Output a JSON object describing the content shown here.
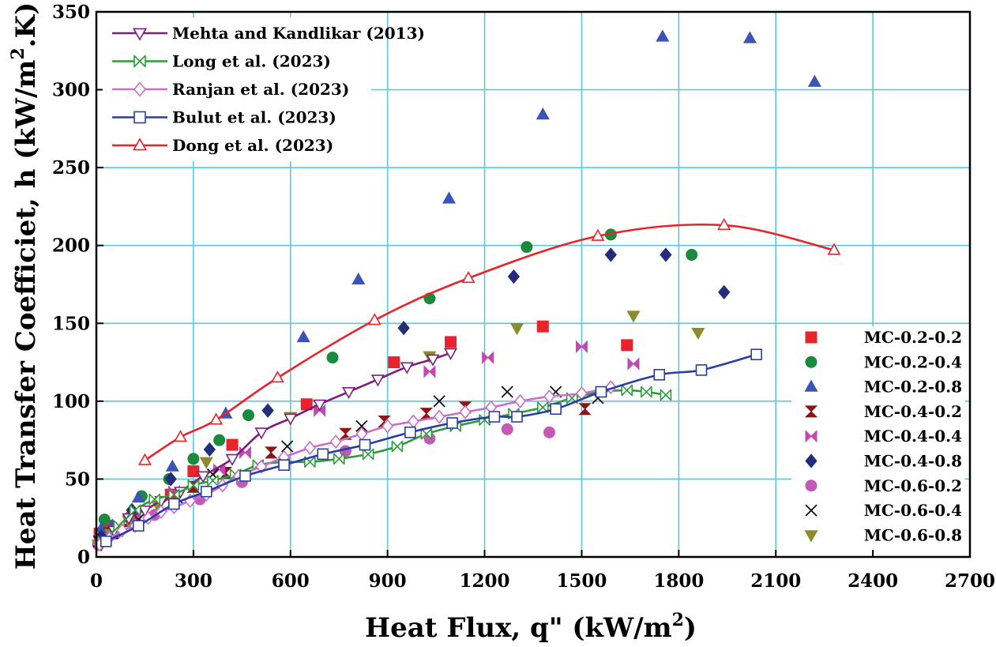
{
  "chart_data": {
    "type": "scatter",
    "xlabel": "Heat Flux, q\" (kW/m²)",
    "xlabel_main": "Heat Flux, q\" (kW/m",
    "xlabel_sup": "2",
    "xlabel_close": ")",
    "ylabel": "Heat Transfer Coefficiet, h (kW/m².K)",
    "ylabel_main": "Heat Transfer Coefficiet, h (kW/m",
    "ylabel_sup": "2",
    "ylabel_close": ".K)",
    "xlim": [
      0,
      2700
    ],
    "ylim": [
      0,
      350
    ],
    "xticks": [
      0,
      300,
      600,
      900,
      1200,
      1500,
      1800,
      2100,
      2400,
      2700
    ],
    "yticks": [
      0,
      50,
      100,
      150,
      200,
      250,
      300,
      350
    ],
    "grid": true,
    "grid_color": "#5bc8d8",
    "correlations": [
      {
        "name": "Mehta and Kandlikar (2013)",
        "color": "#7b1f7e",
        "marker": "triangle-down-open",
        "x": [
          15,
          55,
          100,
          150,
          200,
          260,
          330,
          420,
          510,
          600,
          690,
          780,
          870,
          960,
          1040,
          1095
        ],
        "y": [
          8,
          17,
          25,
          30,
          36,
          42,
          52,
          63,
          80,
          89,
          98,
          106,
          114,
          122,
          127,
          131
        ]
      },
      {
        "name": "Long et al. (2023)",
        "color": "#2e9b3c",
        "marker": "bowtie-open",
        "x": [
          20,
          70,
          120,
          180,
          240,
          300,
          360,
          430,
          500,
          580,
          660,
          750,
          840,
          930,
          1020,
          1110,
          1200,
          1290,
          1380,
          1470,
          1560,
          1640,
          1700,
          1760
        ],
        "y": [
          10,
          20,
          30,
          37,
          40,
          46,
          49,
          53,
          59,
          61,
          61,
          63,
          66,
          71,
          79,
          84,
          88,
          92,
          96,
          102,
          106,
          107,
          106,
          104
        ]
      },
      {
        "name": "Ranjan et al. (2023)",
        "color": "#c86fc8",
        "marker": "diamond-open",
        "x": [
          10,
          40,
          80,
          120,
          160,
          200,
          240,
          290,
          340,
          390,
          440,
          510,
          580,
          660,
          740,
          820,
          900,
          980,
          1060,
          1140,
          1220,
          1310,
          1400,
          1500,
          1590
        ],
        "y": [
          8,
          12,
          17,
          20,
          25,
          29,
          32,
          36,
          40,
          46,
          52,
          58,
          64,
          70,
          74,
          79,
          84,
          87,
          90,
          93,
          96,
          100,
          103,
          105,
          109
        ]
      },
      {
        "name": "Bulut et al. (2023)",
        "color": "#2a3fa0",
        "marker": "square-open",
        "x": [
          30,
          130,
          240,
          340,
          460,
          580,
          700,
          830,
          970,
          1100,
          1230,
          1300,
          1420,
          1560,
          1740,
          1870,
          2040
        ],
        "y": [
          10,
          20,
          34,
          42,
          52,
          59,
          66,
          72,
          80,
          86,
          90,
          90,
          95,
          106,
          117,
          120,
          130
        ]
      },
      {
        "name": "Dong et al. (2023)",
        "color": "#e8232b",
        "marker": "triangle-up-open",
        "x": [
          150,
          260,
          370,
          560,
          860,
          1150,
          1550,
          1940,
          2280
        ],
        "y": [
          62,
          77,
          88,
          115,
          152,
          179,
          206,
          213,
          197
        ]
      }
    ],
    "experimental": [
      {
        "name": "MC-0.2-0.2",
        "color": "#e8232b",
        "marker": "square",
        "x": [
          10,
          30,
          110,
          230,
          300,
          420,
          650,
          920,
          1095,
          1380,
          1640
        ],
        "y": [
          15,
          20,
          25,
          40,
          55,
          72,
          98,
          125,
          138,
          148,
          136
        ]
      },
      {
        "name": "MC-0.2-0.4",
        "color": "#1a8a3c",
        "marker": "circle",
        "x": [
          25,
          140,
          225,
          300,
          380,
          470,
          730,
          1030,
          1330,
          1590,
          1840
        ],
        "y": [
          24,
          39,
          50,
          63,
          75,
          91,
          128,
          166,
          199,
          207,
          194
        ]
      },
      {
        "name": "MC-0.2-0.8",
        "color": "#3a55b5",
        "marker": "triangle-up",
        "x": [
          15,
          50,
          130,
          235,
          400,
          640,
          810,
          1090,
          1380,
          1750,
          2020,
          2220
        ],
        "y": [
          18,
          20,
          38,
          58,
          92,
          141,
          178,
          230,
          284,
          334,
          333,
          305
        ]
      },
      {
        "name": "MC-0.4-0.2",
        "color": "#8a1616",
        "marker": "bowtie-vertical",
        "x": [
          40,
          100,
          200,
          300,
          400,
          540,
          770,
          890,
          1020,
          1140,
          1510
        ],
        "y": [
          15,
          23,
          33,
          45,
          54,
          67,
          79,
          87,
          92,
          96,
          95
        ]
      },
      {
        "name": "MC-0.4-0.4",
        "color": "#c447b5",
        "marker": "bowtie-horizontal",
        "x": [
          20,
          120,
          240,
          380,
          460,
          690,
          1030,
          1210,
          1500,
          1660
        ],
        "y": [
          13,
          26,
          42,
          56,
          67,
          94,
          119,
          128,
          135,
          124
        ]
      },
      {
        "name": "MC-0.4-0.8",
        "color": "#232d7a",
        "marker": "diamond",
        "x": [
          15,
          110,
          230,
          350,
          530,
          950,
          1290,
          1590,
          1760,
          1940
        ],
        "y": [
          13,
          30,
          50,
          69,
          94,
          147,
          180,
          194,
          194,
          170
        ]
      },
      {
        "name": "MC-0.6-0.2",
        "color": "#c45ab6",
        "marker": "circle",
        "x": [
          5,
          60,
          180,
          320,
          450,
          770,
          1030,
          1270,
          1400
        ],
        "y": [
          8,
          15,
          27,
          37,
          48,
          68,
          76,
          82,
          80
        ]
      },
      {
        "name": "MC-0.6-0.4",
        "color": "#111111",
        "marker": "x",
        "x": [
          8,
          50,
          130,
          250,
          360,
          590,
          820,
          1060,
          1270,
          1420,
          1550
        ],
        "y": [
          10,
          15,
          24,
          38,
          53,
          71,
          84,
          100,
          106,
          106,
          102
        ]
      },
      {
        "name": "MC-0.6-0.8",
        "color": "#8c8c2c",
        "marker": "triangle-down",
        "x": [
          5,
          45,
          100,
          190,
          340,
          600,
          1030,
          1300,
          1660,
          1860
        ],
        "y": [
          8,
          15,
          23,
          33,
          61,
          90,
          129,
          147,
          155,
          144
        ]
      }
    ]
  }
}
